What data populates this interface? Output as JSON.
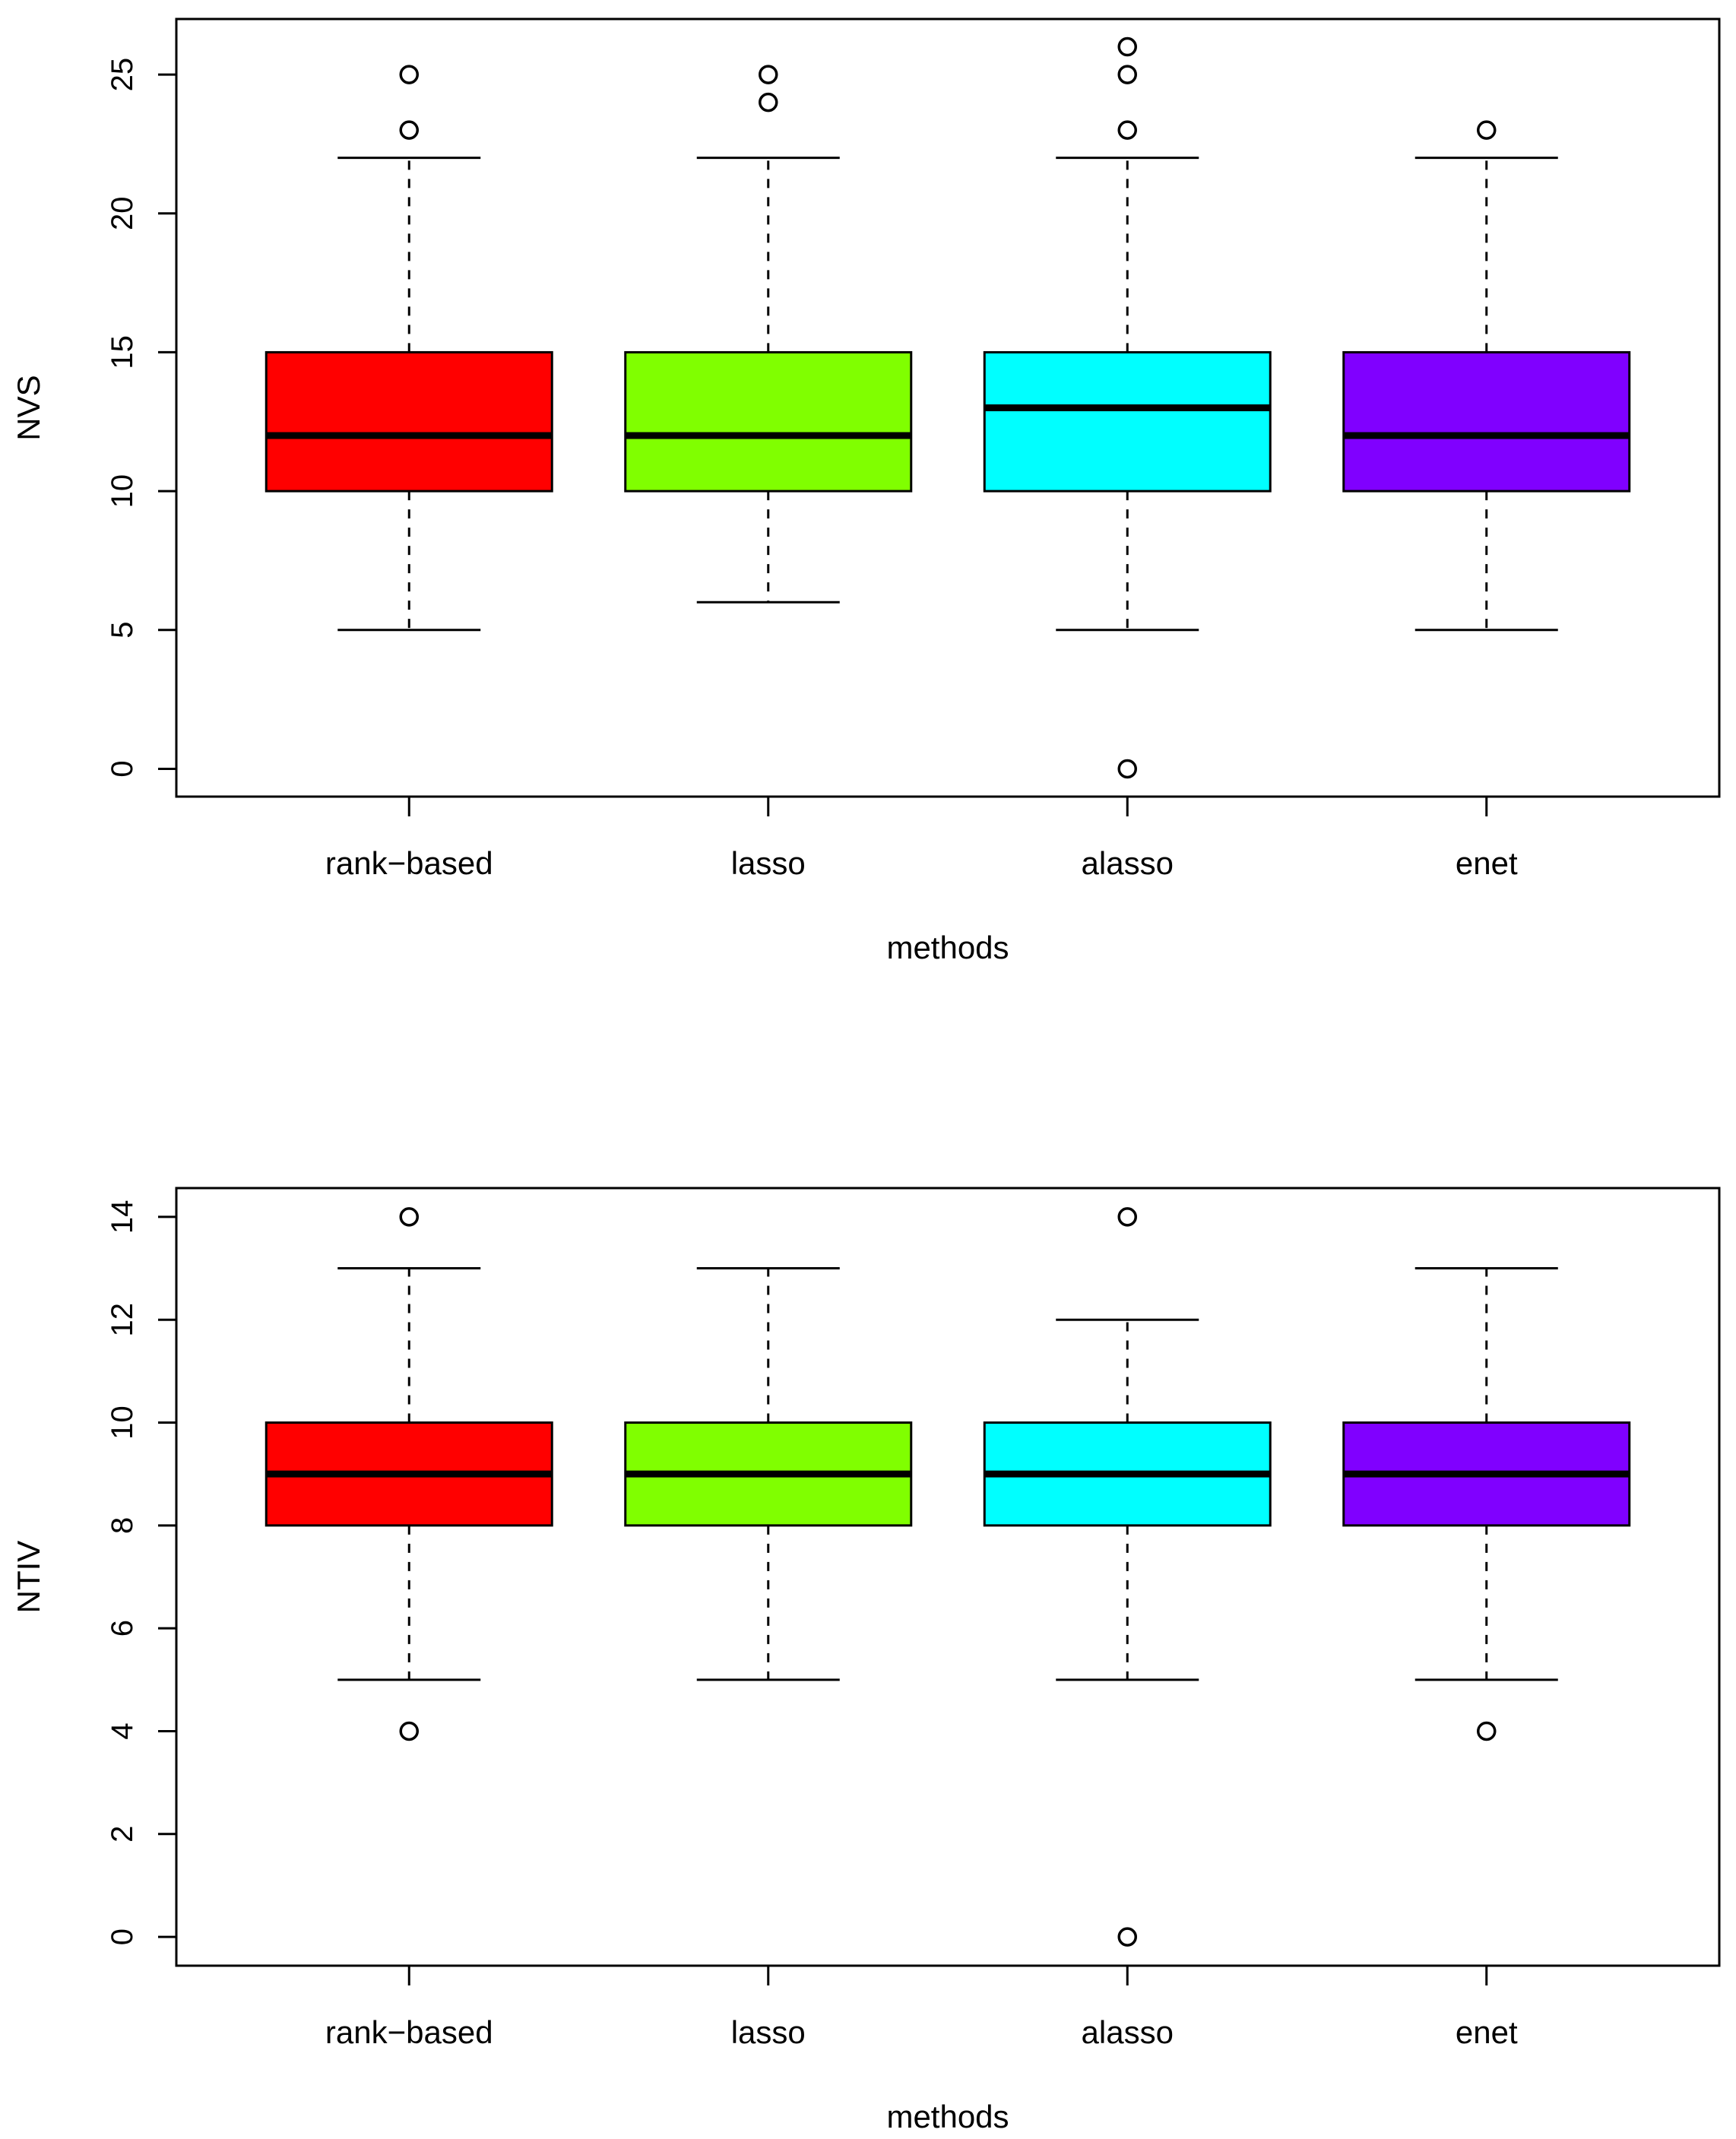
{
  "chart_data": [
    {
      "type": "boxplot",
      "title": "",
      "xlabel": "methods",
      "ylabel": "NVS",
      "ylim": [
        -1,
        27
      ],
      "yticks": [
        0,
        5,
        10,
        15,
        20,
        25
      ],
      "categories": [
        "rank−based",
        "lasso",
        "alasso",
        "enet"
      ],
      "colors": [
        "#ff0000",
        "#80ff00",
        "#00ffff",
        "#8000ff"
      ],
      "boxes": [
        {
          "whisker_low": 5,
          "q1": 10,
          "median": 12,
          "q3": 15,
          "whisker_high": 22,
          "outliers": [
            23,
            25
          ]
        },
        {
          "whisker_low": 6,
          "q1": 10,
          "median": 12,
          "q3": 15,
          "whisker_high": 22,
          "outliers": [
            24,
            25
          ]
        },
        {
          "whisker_low": 5,
          "q1": 10,
          "median": 13,
          "q3": 15,
          "whisker_high": 22,
          "outliers": [
            0,
            23,
            25,
            26
          ]
        },
        {
          "whisker_low": 5,
          "q1": 10,
          "median": 12,
          "q3": 15,
          "whisker_high": 22,
          "outliers": [
            23
          ]
        }
      ]
    },
    {
      "type": "boxplot",
      "title": "",
      "xlabel": "methods",
      "ylabel": "NTIV",
      "ylim": [
        -0.56,
        14.56
      ],
      "yticks": [
        0,
        2,
        4,
        6,
        8,
        10,
        12,
        14
      ],
      "categories": [
        "rank−based",
        "lasso",
        "alasso",
        "enet"
      ],
      "colors": [
        "#ff0000",
        "#80ff00",
        "#00ffff",
        "#8000ff"
      ],
      "boxes": [
        {
          "whisker_low": 5,
          "q1": 8,
          "median": 9,
          "q3": 10,
          "whisker_high": 13,
          "outliers": [
            4,
            14
          ]
        },
        {
          "whisker_low": 5,
          "q1": 8,
          "median": 9,
          "q3": 10,
          "whisker_high": 13,
          "outliers": []
        },
        {
          "whisker_low": 5,
          "q1": 8,
          "median": 9,
          "q3": 10,
          "whisker_high": 12,
          "outliers": [
            0,
            14
          ]
        },
        {
          "whisker_low": 5,
          "q1": 8,
          "median": 9,
          "q3": 10,
          "whisker_high": 13,
          "outliers": [
            4
          ]
        }
      ]
    }
  ]
}
